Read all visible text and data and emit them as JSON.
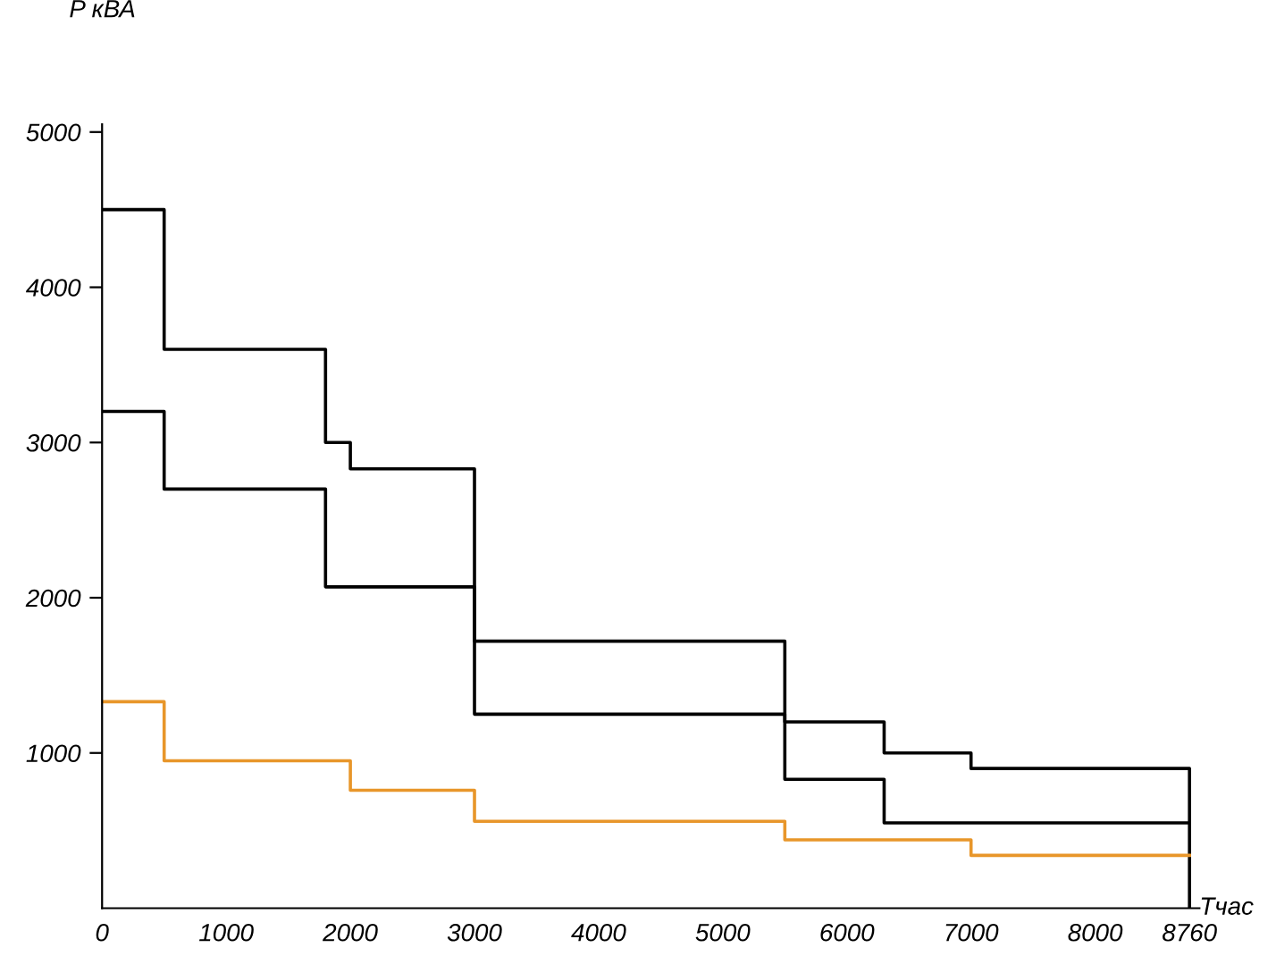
{
  "chart_data": {
    "type": "step",
    "xlabel": "Тчас",
    "ylabel": "P кВА",
    "series": [
      {
        "color": "#000000",
        "x": [
          0,
          500,
          1800,
          2000,
          3000,
          5500,
          6300,
          7000,
          8760,
          8760
        ],
        "values": [
          4500,
          3600,
          3000,
          2830,
          1720,
          1200,
          1000,
          900,
          900,
          0
        ]
      },
      {
        "color": "#000000",
        "x": [
          0,
          500,
          1800,
          3000,
          5500,
          6300,
          8760
        ],
        "values": [
          3200,
          2700,
          2070,
          1250,
          830,
          550,
          550
        ]
      },
      {
        "color": "#e8962a",
        "x": [
          0,
          500,
          2000,
          3000,
          5500,
          7000,
          8760
        ],
        "values": [
          1330,
          950,
          760,
          560,
          440,
          340,
          340
        ]
      }
    ],
    "xlim": [
      0,
      8840
    ],
    "ylim": [
      0,
      5050
    ],
    "xticks": [
      0,
      1000,
      2000,
      3000,
      4000,
      5000,
      6000,
      7000,
      8000,
      8760
    ],
    "yticks": [
      1000,
      2000,
      3000,
      4000,
      5000
    ],
    "grid": false,
    "legend": false
  }
}
